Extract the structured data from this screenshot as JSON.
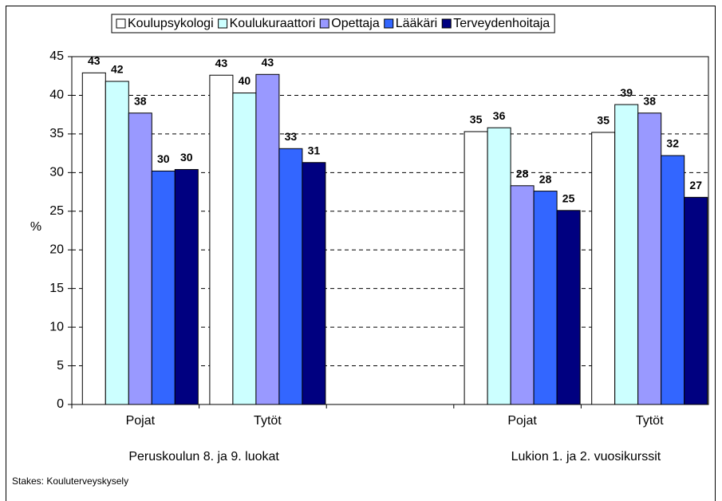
{
  "chart_data": {
    "type": "bar",
    "categories": [
      "Pojat",
      "Tytöt",
      null,
      "Pojat",
      "Tytöt"
    ],
    "group_labels": [
      "Peruskoulun 8. ja 9. luokat",
      "Lukion 1. ja 2. vuosikurssit"
    ],
    "y_label": "%",
    "source": "Stakes: Kouluterveyskysely",
    "series": [
      {
        "name": "Koulupsykologi",
        "color": "#ffffff",
        "values": [
          42.9,
          42.6,
          null,
          35.3,
          35.2
        ],
        "value_labels": [
          "43",
          "43",
          null,
          "35",
          "35"
        ]
      },
      {
        "name": "Koulukuraattori",
        "color": "#ccffff",
        "values": [
          41.8,
          40.3,
          null,
          35.8,
          38.8
        ],
        "value_labels": [
          "42",
          "40",
          null,
          "36",
          "39"
        ]
      },
      {
        "name": "Opettaja",
        "color": "#9999ff",
        "values": [
          37.7,
          42.7,
          null,
          28.3,
          37.7
        ],
        "value_labels": [
          "38",
          "43",
          null,
          "28",
          "38"
        ]
      },
      {
        "name": "Lääkäri",
        "color": "#3366ff",
        "values": [
          30.2,
          33.1,
          null,
          27.6,
          32.2
        ],
        "value_labels": [
          "30",
          "33",
          null,
          "28",
          "32"
        ]
      },
      {
        "name": "Terveydenhoitaja",
        "color": "#000080",
        "values": [
          30.4,
          31.3,
          null,
          25.1,
          26.8
        ],
        "value_labels": [
          "30",
          "31",
          null,
          "25",
          "27"
        ]
      }
    ],
    "ylim": [
      0,
      45
    ],
    "yticks": [
      0,
      5,
      10,
      15,
      20,
      25,
      30,
      35,
      40,
      45
    ],
    "grid": true
  }
}
